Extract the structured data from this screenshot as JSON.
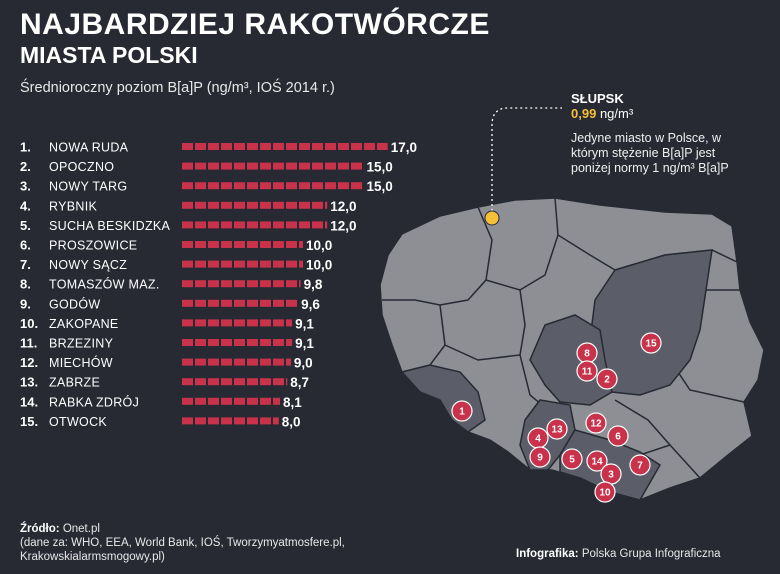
{
  "title_line1": "NAJBARDZIEJ RAKOTWÓRCZE",
  "title_line2": "MIASTA POLSKI",
  "subtitle": "Średnioroczny poziom B[a]P (ng/m³, IOŚ 2014 r.)",
  "chart_data": {
    "type": "bar",
    "orientation": "horizontal",
    "categories": [
      "NOWA RUDA",
      "OPOCZNO",
      "NOWY TARG",
      "RYBNIK",
      "SUCHA BESKIDZKA",
      "PROSZOWICE",
      "NOWY SĄCZ",
      "TOMASZÓW MAZ.",
      "GODÓW",
      "ZAKOPANE",
      "BRZEZINY",
      "MIECHÓW",
      "ZABRZE",
      "RABKA ZDRÓJ",
      "OTWOCK"
    ],
    "ranks": [
      "1.",
      "2.",
      "3.",
      "4.",
      "5.",
      "6.",
      "7.",
      "8.",
      "9.",
      "10.",
      "11.",
      "12.",
      "13.",
      "14.",
      "15."
    ],
    "values": [
      17.0,
      15.0,
      15.0,
      12.0,
      12.0,
      10.0,
      10.0,
      9.8,
      9.6,
      9.1,
      9.1,
      9.0,
      8.7,
      8.1,
      8.0
    ],
    "value_labels": [
      "17,0",
      "15,0",
      "15,0",
      "12,0",
      "12,0",
      "10,0",
      "10,0",
      "9,8",
      "9,6",
      "9,1",
      "9,1",
      "9,0",
      "8,7",
      "8,1",
      "8,0"
    ],
    "bar_color": "#c8324a"
  },
  "map": {
    "markers": [
      "15",
      "8",
      "11",
      "2",
      "1",
      "13",
      "12",
      "4",
      "6",
      "9",
      "5",
      "14",
      "7",
      "3",
      "10"
    ],
    "marker_color": "#c8324a",
    "slupsk_dot_color": "#f5c038"
  },
  "callout": {
    "city": "SŁUPSK",
    "value": "0,99",
    "unit": "ng/m³",
    "note": "Jedyne miasto w Polsce, w którym stężenie B[a]P jest poniżej normy 1 ng/m³ B[a]P"
  },
  "source": {
    "label": "Źródło:",
    "text": "Onet.pl",
    "details": "(dane za: WHO, EEA, World Bank, IOŚ, Tworzymyatmosfere.pl, Krakowskialarmsmogowy.pl)"
  },
  "credit": {
    "label": "Infografika:",
    "text": "Polska Grupa Infograficzna"
  },
  "colors": {
    "background": "#272a33",
    "map_light": "#8d8f95",
    "map_dark": "#5b5e68",
    "map_border": "#272a33"
  }
}
